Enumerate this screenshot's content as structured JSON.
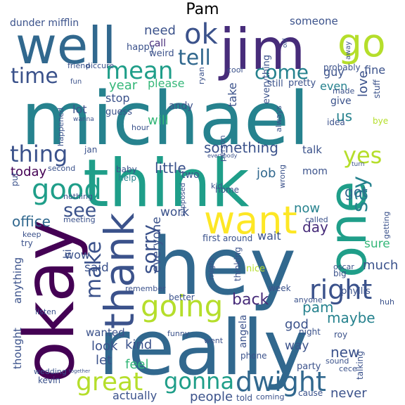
{
  "title": "Pam",
  "words": [
    {
      "text": "michael",
      "color": "#26828e"
    },
    {
      "text": "think",
      "color": "#1f9e89"
    },
    {
      "text": "hey",
      "color": "#31688e"
    },
    {
      "text": "really",
      "color": "#31688e"
    },
    {
      "text": "okay",
      "color": "#440154"
    },
    {
      "text": "well",
      "color": "#31688e"
    },
    {
      "text": "jim",
      "color": "#472c7a"
    },
    {
      "text": "one",
      "color": "#1f9e89"
    },
    {
      "text": "want",
      "color": "#fde725"
    },
    {
      "text": "thank",
      "color": "#3b528b"
    },
    {
      "text": "go",
      "color": "#b5de2b"
    },
    {
      "text": "ok",
      "color": "#3b528b"
    },
    {
      "text": "going",
      "color": "#b5de2b"
    },
    {
      "text": "good",
      "color": "#1f9e89"
    },
    {
      "text": "right",
      "color": "#3b528b"
    },
    {
      "text": "dwight",
      "color": "#31688e"
    },
    {
      "text": "great",
      "color": "#b5de2b"
    },
    {
      "text": "gonna",
      "color": "#1f9e89"
    },
    {
      "text": "mean",
      "color": "#1f9e89"
    },
    {
      "text": "tell",
      "color": "#31688e"
    },
    {
      "text": "time",
      "color": "#3b528b"
    },
    {
      "text": "thing",
      "color": "#3b528b"
    },
    {
      "text": "come",
      "color": "#26828e"
    },
    {
      "text": "yes",
      "color": "#b5de2b"
    },
    {
      "text": "say",
      "color": "#26828e"
    },
    {
      "text": "make",
      "color": "#3b528b"
    },
    {
      "text": "sorry",
      "color": "#3b528b"
    },
    {
      "text": "see",
      "color": "#3b528b"
    },
    {
      "text": "need",
      "color": "#3b528b"
    },
    {
      "text": "something",
      "color": "#3b528b"
    },
    {
      "text": "little",
      "color": "#3b528b"
    },
    {
      "text": "job",
      "color": "#31688e"
    },
    {
      "text": "got",
      "color": "#31688e"
    },
    {
      "text": "back",
      "color": "#472c7a"
    },
    {
      "text": "maybe",
      "color": "#26828e"
    },
    {
      "text": "pam",
      "color": "#26828e"
    },
    {
      "text": "now",
      "color": "#26828e"
    },
    {
      "text": "day",
      "color": "#472c7a"
    },
    {
      "text": "work",
      "color": "#3b528b"
    },
    {
      "text": "office",
      "color": "#31688e"
    },
    {
      "text": "today",
      "color": "#440154"
    },
    {
      "text": "said",
      "color": "#3b528b"
    },
    {
      "text": "everyone",
      "color": "#3b528b"
    },
    {
      "text": "much",
      "color": "#3b528b"
    },
    {
      "text": "sure",
      "color": "#35b779"
    },
    {
      "text": "look",
      "color": "#3b528b"
    },
    {
      "text": "kind",
      "color": "#3b528b"
    },
    {
      "text": "feel",
      "color": "#35b779"
    },
    {
      "text": "let",
      "color": "#3b528b"
    },
    {
      "text": "people",
      "color": "#3b528b"
    },
    {
      "text": "actually",
      "color": "#3b528b"
    },
    {
      "text": "never",
      "color": "#3b528b"
    },
    {
      "text": "new",
      "color": "#3b528b"
    },
    {
      "text": "way",
      "color": "#3b528b"
    },
    {
      "text": "god",
      "color": "#3b528b"
    },
    {
      "text": "will",
      "color": "#35b779"
    },
    {
      "text": "us",
      "color": "#26828e"
    },
    {
      "text": "guy",
      "color": "#3b528b"
    },
    {
      "text": "love",
      "color": "#3b528b"
    },
    {
      "text": "even",
      "color": "#26828e"
    },
    {
      "text": "fine",
      "color": "#3b528b"
    },
    {
      "text": "year",
      "color": "#35b779"
    },
    {
      "text": "lot",
      "color": "#3b528b"
    },
    {
      "text": "take",
      "color": "#3b528b"
    },
    {
      "text": "dunder mifflin",
      "color": "#3b528b"
    },
    {
      "text": "happy",
      "color": "#3b528b"
    },
    {
      "text": "call",
      "color": "#472c7a"
    },
    {
      "text": "weird",
      "color": "#3b528b"
    },
    {
      "text": "someone",
      "color": "#3b528b"
    },
    {
      "text": "everything",
      "color": "#3b528b"
    },
    {
      "text": "probably",
      "color": "#3b528b"
    },
    {
      "text": "stuff",
      "color": "#3b528b"
    },
    {
      "text": "pretty",
      "color": "#3b528b"
    },
    {
      "text": "still",
      "color": "#3b528b"
    },
    {
      "text": "made",
      "color": "#3b528b"
    },
    {
      "text": "give",
      "color": "#3b528b"
    },
    {
      "text": "please",
      "color": "#35b779"
    },
    {
      "text": "stop",
      "color": "#3b528b"
    },
    {
      "text": "guess",
      "color": "#3b528b"
    },
    {
      "text": "andy",
      "color": "#3b528b"
    },
    {
      "text": "hour",
      "color": "#3b528b"
    },
    {
      "text": "idea",
      "color": "#3b528b"
    },
    {
      "text": "bye",
      "color": "#b5de2b"
    },
    {
      "text": "always",
      "color": "#3b528b"
    },
    {
      "text": "talk",
      "color": "#3b528b"
    },
    {
      "text": "mom",
      "color": "#3b528b"
    },
    {
      "text": "two",
      "color": "#3b528b"
    },
    {
      "text": "kid",
      "color": "#3b528b"
    },
    {
      "text": "home",
      "color": "#3b528b"
    },
    {
      "text": "help",
      "color": "#26828e"
    },
    {
      "text": "baby",
      "color": "#3b528b"
    },
    {
      "text": "jan",
      "color": "#3b528b"
    },
    {
      "text": "second",
      "color": "#3b528b"
    },
    {
      "text": "put",
      "color": "#3b528b"
    },
    {
      "text": "nothing",
      "color": "#3b528b"
    },
    {
      "text": "meeting",
      "color": "#3b528b"
    },
    {
      "text": "keep",
      "color": "#3b528b"
    },
    {
      "text": "try",
      "color": "#3b528b"
    },
    {
      "text": "wow",
      "color": "#3b528b"
    },
    {
      "text": "hi",
      "color": "#3b528b"
    },
    {
      "text": "thought",
      "color": "#3b528b"
    },
    {
      "text": "anything",
      "color": "#3b528b"
    },
    {
      "text": "listen",
      "color": "#3b528b"
    },
    {
      "text": "wanted",
      "color": "#3b528b"
    },
    {
      "text": "wedding",
      "color": "#3b528b"
    },
    {
      "text": "kevin",
      "color": "#3b528b"
    },
    {
      "text": "first",
      "color": "#3b528b"
    },
    {
      "text": "around",
      "color": "#3b528b"
    },
    {
      "text": "wait",
      "color": "#3b528b"
    },
    {
      "text": "nice",
      "color": "#b5de2b"
    },
    {
      "text": "remember",
      "color": "#3b528b"
    },
    {
      "text": "better",
      "color": "#3b528b"
    },
    {
      "text": "funny",
      "color": "#3b528b"
    },
    {
      "text": "went",
      "color": "#3b528b"
    },
    {
      "text": "phone",
      "color": "#3b528b"
    },
    {
      "text": "told",
      "color": "#3b528b"
    },
    {
      "text": "coming",
      "color": "#3b528b"
    },
    {
      "text": "angela",
      "color": "#3b528b"
    },
    {
      "text": "night",
      "color": "#3b528b"
    },
    {
      "text": "party",
      "color": "#3b528b"
    },
    {
      "text": "sound",
      "color": "#3b528b"
    },
    {
      "text": "cause",
      "color": "#3b528b"
    },
    {
      "text": "cece",
      "color": "#3b528b"
    },
    {
      "text": "roy",
      "color": "#3b528b"
    },
    {
      "text": "phyllis",
      "color": "#3b528b"
    },
    {
      "text": "huh",
      "color": "#3b528b"
    },
    {
      "text": "talking",
      "color": "#3b528b"
    },
    {
      "text": "oscar",
      "color": "#3b528b"
    },
    {
      "text": "getting",
      "color": "#3b528b"
    },
    {
      "text": "called",
      "color": "#3b528b"
    },
    {
      "text": "week",
      "color": "#3b528b"
    },
    {
      "text": "big",
      "color": "#3b528b"
    },
    {
      "text": "anyone",
      "color": "#3b528b"
    },
    {
      "text": "thinking",
      "color": "#3b528b"
    },
    {
      "text": "might",
      "color": "#3b528b"
    },
    {
      "text": "supposed",
      "color": "#3b528b"
    },
    {
      "text": "wrong",
      "color": "#3b528b"
    },
    {
      "text": "person",
      "color": "#3b528b"
    },
    {
      "text": "ryan",
      "color": "#3b528b"
    },
    {
      "text": "cool",
      "color": "#3b528b"
    },
    {
      "text": "friend",
      "color": "#3b528b"
    },
    {
      "text": "piccure",
      "color": "#3b528b"
    },
    {
      "text": "fun",
      "color": "#3b528b"
    },
    {
      "text": "wanna",
      "color": "#3b528b"
    },
    {
      "text": "happened",
      "color": "#3b528b"
    },
    {
      "text": "turn",
      "color": "#3b528b"
    },
    {
      "text": "old",
      "color": "#3b528b"
    },
    {
      "text": "away",
      "color": "#3b528b"
    },
    {
      "text": "everybody",
      "color": "#3b528b"
    },
    {
      "text": "together",
      "color": "#3b528b"
    }
  ]
}
